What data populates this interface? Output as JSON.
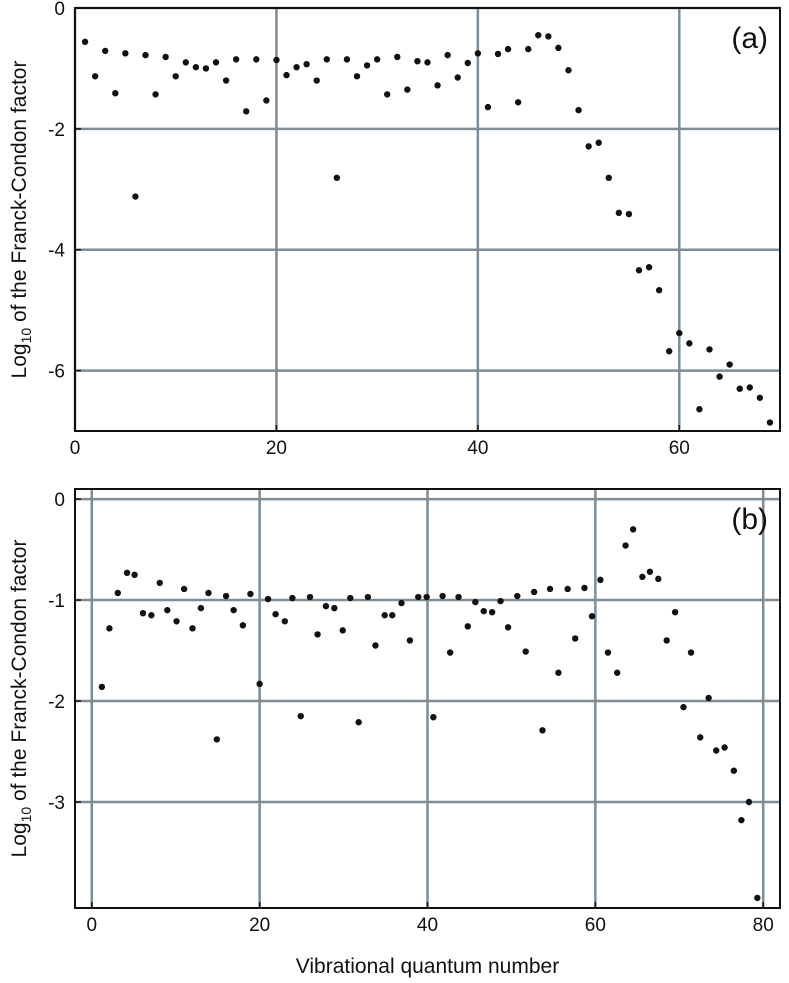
{
  "chart_data": [
    {
      "type": "scatter",
      "panel_label": "(a)",
      "color": "#111111",
      "grid": true,
      "ylabel": [
        "Log",
        "10",
        " of the Franck-Condon factor"
      ],
      "xlim": [
        0,
        70
      ],
      "ylim": [
        -7,
        0
      ],
      "xticks": [
        0,
        20,
        40,
        60
      ],
      "yticks": [
        0,
        -2,
        -4,
        -6
      ],
      "x": [
        1,
        2,
        3,
        4,
        5,
        6,
        7,
        8,
        9,
        10,
        11,
        12,
        13,
        14,
        15,
        16,
        17,
        18,
        19,
        20,
        21,
        22,
        23,
        24,
        25,
        26,
        27,
        28,
        29,
        30,
        31,
        32,
        33,
        34,
        35,
        36,
        37,
        38,
        39,
        40,
        41,
        42,
        43,
        44,
        45,
        46,
        47,
        48,
        49,
        50,
        51,
        52,
        53,
        54,
        55,
        56,
        57,
        58,
        59,
        60,
        61,
        62,
        63,
        64,
        65,
        66,
        67,
        68,
        69
      ],
      "values": [
        -0.56,
        -1.13,
        -0.71,
        -1.41,
        -0.75,
        -3.12,
        -0.78,
        -1.43,
        -0.81,
        -1.13,
        -0.9,
        -0.98,
        -1.0,
        -0.9,
        -1.2,
        -0.85,
        -1.71,
        -0.85,
        -1.53,
        -0.86,
        -1.11,
        -0.98,
        -0.93,
        -1.2,
        -0.85,
        -2.81,
        -0.85,
        -1.13,
        -0.95,
        -0.85,
        -1.43,
        -0.81,
        -1.35,
        -0.88,
        -0.9,
        -1.28,
        -0.78,
        -1.15,
        -0.91,
        -0.75,
        -1.64,
        -0.76,
        -0.68,
        -1.56,
        -0.68,
        -0.45,
        -0.47,
        -0.66,
        -1.03,
        -1.69,
        -2.29,
        -2.23,
        -2.81,
        -3.39,
        -3.41,
        -4.34,
        -4.29,
        -4.67,
        -5.68,
        -5.38,
        -5.55,
        -6.64,
        -5.65,
        -6.1,
        -5.9,
        -6.3,
        -6.28,
        -6.45,
        -6.86
      ]
    },
    {
      "type": "scatter",
      "panel_label": "(b)",
      "color": "#111111",
      "grid": true,
      "ylabel": [
        "Log",
        "10",
        " of the Franck-Condon factor"
      ],
      "xlabel": "Vibrational quantum number",
      "xlim": [
        -2,
        82
      ],
      "ylim": [
        -4.05,
        0.1
      ],
      "xticks": [
        0,
        20,
        40,
        60,
        80
      ],
      "yticks": [
        0,
        -1,
        -2,
        -3
      ],
      "x": [
        1.2,
        2.1,
        3.1,
        4.2,
        5.1,
        6.1,
        7.1,
        8.1,
        9.0,
        10.1,
        11.0,
        12.0,
        13.0,
        13.9,
        14.9,
        16.0,
        16.9,
        18.0,
        18.9,
        20.0,
        21.0,
        21.9,
        23.0,
        23.9,
        24.9,
        26.0,
        26.9,
        27.9,
        28.9,
        29.9,
        30.8,
        31.8,
        32.9,
        33.8,
        34.9,
        35.8,
        36.9,
        37.9,
        38.9,
        39.9,
        40.7,
        41.8,
        42.7,
        43.7,
        44.8,
        45.7,
        46.7,
        47.7,
        48.7,
        49.6,
        50.7,
        51.7,
        52.7,
        53.7,
        54.6,
        55.6,
        56.7,
        57.6,
        58.7,
        59.6,
        60.6,
        61.5,
        62.6,
        63.6,
        64.5,
        65.6,
        66.5,
        67.5,
        68.5,
        69.5,
        70.5,
        71.4,
        72.5,
        73.5,
        74.4,
        75.4,
        76.5,
        77.4,
        78.3,
        79.3
      ],
      "values": [
        -1.86,
        -1.28,
        -0.93,
        -0.73,
        -0.75,
        -1.13,
        -1.15,
        -0.83,
        -1.1,
        -1.21,
        -0.89,
        -1.28,
        -1.08,
        -0.93,
        -2.38,
        -0.96,
        -1.1,
        -1.25,
        -0.94,
        -1.83,
        -0.99,
        -1.14,
        -1.21,
        -0.98,
        -2.15,
        -0.97,
        -1.34,
        -1.06,
        -1.08,
        -1.3,
        -0.98,
        -2.21,
        -0.97,
        -1.45,
        -1.15,
        -1.15,
        -1.03,
        -1.4,
        -0.97,
        -0.97,
        -2.16,
        -0.96,
        -1.52,
        -0.97,
        -1.26,
        -1.02,
        -1.11,
        -1.12,
        -1.01,
        -1.27,
        -0.96,
        -1.51,
        -0.92,
        -2.29,
        -0.89,
        -1.72,
        -0.89,
        -1.38,
        -0.88,
        -1.16,
        -0.8,
        -1.52,
        -1.72,
        -0.46,
        -0.3,
        -0.77,
        -0.72,
        -0.79,
        -1.4,
        -1.12,
        -2.06,
        -1.52,
        -2.36,
        -1.97,
        -2.49,
        -2.46,
        -2.69,
        -3.18,
        -3.0,
        -3.95
      ]
    }
  ]
}
